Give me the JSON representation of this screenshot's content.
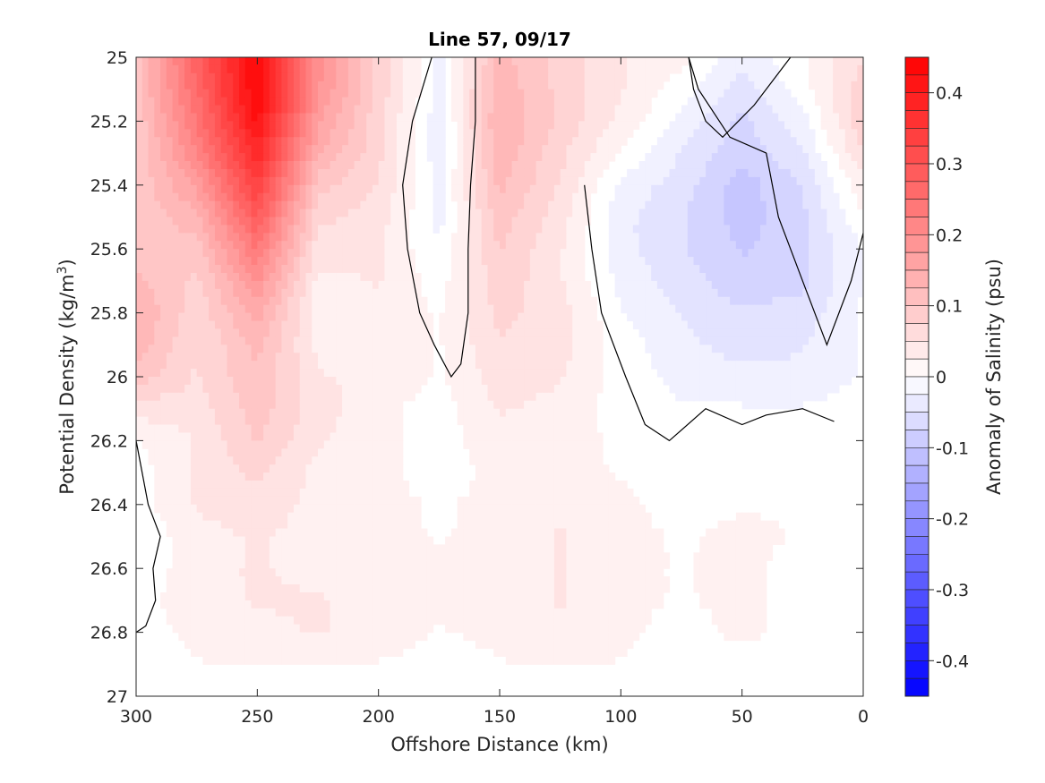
{
  "chart_data": {
    "type": "heatmap",
    "subtype": "filled-contour",
    "title": "Line 57, 09/17",
    "xlabel": "Offshore Distance (km)",
    "ylabel": "Potential Density (kg/m³)",
    "ylabel_parts": {
      "base": "Potential Density (kg/m",
      "superscript": "3",
      "tail": ")"
    },
    "colorbar_label": "Anomaly of Salinity (psu)",
    "x_reversed": true,
    "y_reversed": true,
    "xlim": [
      0,
      300
    ],
    "ylim": [
      25,
      27
    ],
    "clim": [
      -0.45,
      0.45
    ],
    "contour_step": 0.025,
    "x_ticks": [
      "300",
      "250",
      "200",
      "150",
      "100",
      "50",
      "0"
    ],
    "y_ticks": [
      "25",
      "25.2",
      "25.4",
      "25.6",
      "25.8",
      "26",
      "26.2",
      "26.4",
      "26.6",
      "26.8",
      "27"
    ],
    "colorbar_ticks": [
      "0.4",
      "0.3",
      "0.2",
      "0.1",
      "0",
      "-0.1",
      "-0.2",
      "-0.3",
      "-0.4"
    ],
    "data_extent": {
      "x": [
        0,
        300
      ],
      "y": [
        25,
        26.9
      ]
    },
    "colormap": {
      "negative": "#0000ff",
      "zero": "#ffffff",
      "positive": "#ff0000"
    },
    "x": [
      300,
      275,
      250,
      225,
      200,
      175,
      150,
      125,
      100,
      75,
      50,
      25,
      0
    ],
    "y": [
      25.0,
      25.1,
      25.2,
      25.3,
      25.4,
      25.5,
      25.6,
      25.7,
      25.8,
      25.9,
      26.0,
      26.1,
      26.2,
      26.3,
      26.4,
      26.5,
      26.6,
      26.7,
      26.8,
      26.9
    ],
    "values": [
      [
        0.1,
        0.28,
        0.44,
        0.2,
        0.08,
        -0.02,
        0.12,
        0.08,
        0.04,
        0.02,
        -0.03,
        0.01,
        0.06
      ],
      [
        0.1,
        0.26,
        0.44,
        0.19,
        0.08,
        -0.02,
        0.13,
        0.08,
        0.04,
        0.0,
        -0.05,
        0.0,
        0.08
      ],
      [
        0.09,
        0.24,
        0.42,
        0.17,
        0.07,
        -0.03,
        0.14,
        0.08,
        0.03,
        -0.02,
        -0.07,
        -0.02,
        0.08
      ],
      [
        0.09,
        0.21,
        0.38,
        0.14,
        0.07,
        -0.03,
        0.13,
        0.07,
        0.01,
        -0.04,
        -0.08,
        -0.04,
        0.06
      ],
      [
        0.09,
        0.17,
        0.34,
        0.1,
        0.06,
        -0.02,
        0.12,
        0.06,
        -0.02,
        -0.05,
        -0.1,
        -0.06,
        0.03
      ],
      [
        0.09,
        0.13,
        0.29,
        0.07,
        0.05,
        -0.02,
        0.1,
        0.05,
        -0.03,
        -0.06,
        -0.1,
        -0.07,
        0.01
      ],
      [
        0.1,
        0.1,
        0.24,
        0.05,
        0.04,
        -0.01,
        0.09,
        0.04,
        -0.03,
        -0.06,
        -0.09,
        -0.07,
        -0.01
      ],
      [
        0.12,
        0.08,
        0.19,
        0.03,
        0.04,
        0.0,
        0.08,
        0.04,
        -0.02,
        -0.05,
        -0.08,
        -0.07,
        -0.01
      ],
      [
        0.14,
        0.07,
        0.15,
        0.02,
        0.03,
        0.01,
        0.07,
        0.05,
        -0.01,
        -0.04,
        -0.06,
        -0.05,
        -0.01
      ],
      [
        0.13,
        0.06,
        0.12,
        0.03,
        0.03,
        0.01,
        0.06,
        0.05,
        0.0,
        -0.03,
        -0.05,
        -0.04,
        -0.01
      ],
      [
        0.1,
        0.06,
        0.11,
        0.04,
        0.03,
        0.01,
        0.05,
        0.04,
        0.0,
        -0.02,
        -0.03,
        -0.03,
        -0.01
      ],
      [
        0.05,
        0.05,
        0.1,
        0.05,
        0.02,
        0.0,
        0.04,
        0.03,
        0.0,
        -0.01,
        -0.01,
        -0.01,
        0.0
      ],
      [
        0.01,
        0.04,
        0.09,
        0.04,
        0.02,
        0.0,
        0.03,
        0.02,
        0.01,
        0.0,
        0.0,
        0.0,
        0.0
      ],
      [
        0.0,
        0.04,
        0.07,
        0.03,
        0.02,
        0.0,
        0.02,
        0.02,
        0.01,
        0.0,
        0.0,
        0.01,
        0.0
      ],
      [
        0.0,
        0.04,
        0.05,
        0.03,
        0.02,
        0.01,
        0.02,
        0.03,
        0.02,
        0.0,
        0.01,
        0.01,
        0.0
      ],
      [
        -0.01,
        0.03,
        0.04,
        0.03,
        0.02,
        0.01,
        0.02,
        0.04,
        0.02,
        0.01,
        0.02,
        0.01,
        0.0
      ],
      [
        -0.01,
        0.03,
        0.04,
        0.03,
        0.02,
        0.02,
        0.02,
        0.04,
        0.02,
        0.01,
        0.02,
        0.0,
        0.0
      ],
      [
        0.0,
        0.03,
        0.04,
        0.04,
        0.03,
        0.02,
        0.02,
        0.04,
        0.02,
        0.01,
        0.02,
        0.0,
        0.0
      ],
      [
        0.0,
        0.02,
        0.03,
        0.04,
        0.03,
        0.01,
        0.02,
        0.03,
        0.02,
        0.0,
        0.02,
        0.0,
        0.0
      ],
      [
        0.0,
        0.01,
        0.02,
        0.02,
        0.01,
        0.0,
        0.01,
        0.02,
        0.01,
        0.0,
        0.0,
        0.0,
        0.0
      ]
    ],
    "zero_contours": [
      {
        "name": "inner-channel",
        "points": [
          [
            178,
            25
          ],
          [
            186,
            25.2
          ],
          [
            190,
            25.4
          ],
          [
            188,
            25.6
          ],
          [
            183,
            25.8
          ],
          [
            177,
            25.9
          ],
          [
            170,
            26.0
          ],
          [
            166,
            25.96
          ],
          [
            163,
            25.8
          ],
          [
            163,
            25.6
          ],
          [
            162,
            25.4
          ],
          [
            160,
            25.2
          ],
          [
            160,
            25
          ]
        ]
      },
      {
        "name": "offshore-lens",
        "points": [
          [
            72,
            25
          ],
          [
            70,
            25.1
          ],
          [
            65,
            25.2
          ],
          [
            58,
            25.25
          ],
          [
            45,
            25.15
          ],
          [
            30,
            25.0
          ]
        ]
      },
      {
        "name": "blue-core-boundary",
        "points": [
          [
            72,
            25
          ],
          [
            68,
            25.1
          ],
          [
            55,
            25.25
          ],
          [
            40,
            25.3
          ],
          [
            35,
            25.5
          ],
          [
            25,
            25.7
          ],
          [
            15,
            25.9
          ],
          [
            5,
            25.7
          ],
          [
            0,
            25.55
          ]
        ]
      },
      {
        "name": "shelf-boundary",
        "points": [
          [
            115,
            25.4
          ],
          [
            112,
            25.6
          ],
          [
            108,
            25.8
          ],
          [
            98,
            26.0
          ],
          [
            90,
            26.15
          ],
          [
            80,
            26.2
          ],
          [
            65,
            26.1
          ],
          [
            50,
            26.15
          ],
          [
            40,
            26.12
          ],
          [
            25,
            26.1
          ],
          [
            12,
            26.14
          ]
        ]
      },
      {
        "name": "onshore-edge",
        "points": [
          [
            300,
            26.2
          ],
          [
            295,
            26.4
          ],
          [
            290,
            26.5
          ],
          [
            293,
            26.6
          ],
          [
            292,
            26.7
          ],
          [
            296,
            26.78
          ],
          [
            300,
            26.8
          ]
        ]
      }
    ]
  }
}
